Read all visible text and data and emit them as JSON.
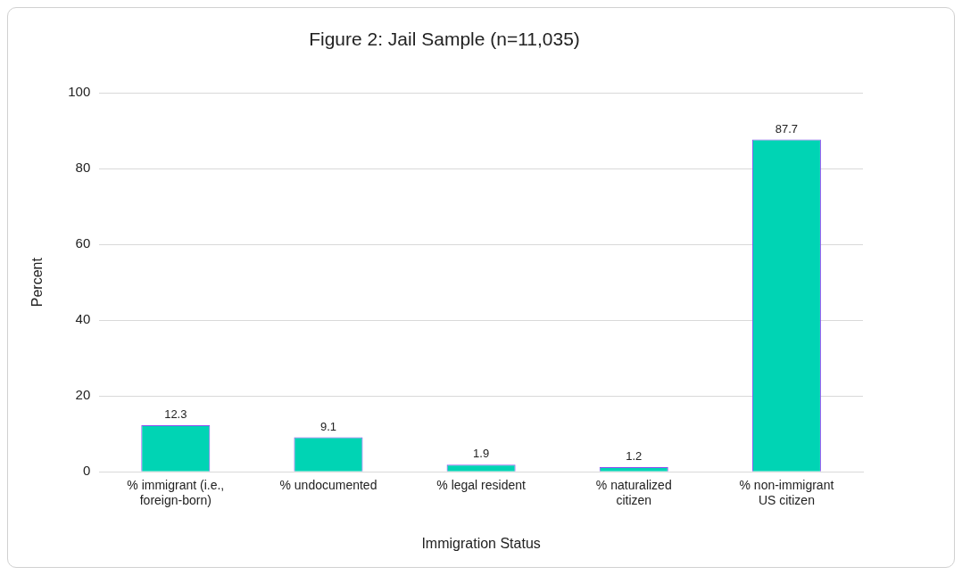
{
  "chart_data": {
    "type": "bar",
    "title": "Figure 2: Jail Sample (n=11,035)",
    "xlabel": "Immigration Status",
    "ylabel": "Percent",
    "categories": [
      "% immigrant (i.e., foreign-born)",
      "% undocumented",
      "% legal resident",
      "% naturalized citizen",
      "% non-immigrant US citizen"
    ],
    "values": [
      12.3,
      9.1,
      1.9,
      1.2,
      87.7
    ],
    "color": "#00d4b4",
    "ylim": [
      0,
      100
    ],
    "yticks": [
      0,
      20,
      40,
      60,
      80,
      100
    ],
    "grid": "y",
    "legend": false,
    "data_labels": true
  }
}
